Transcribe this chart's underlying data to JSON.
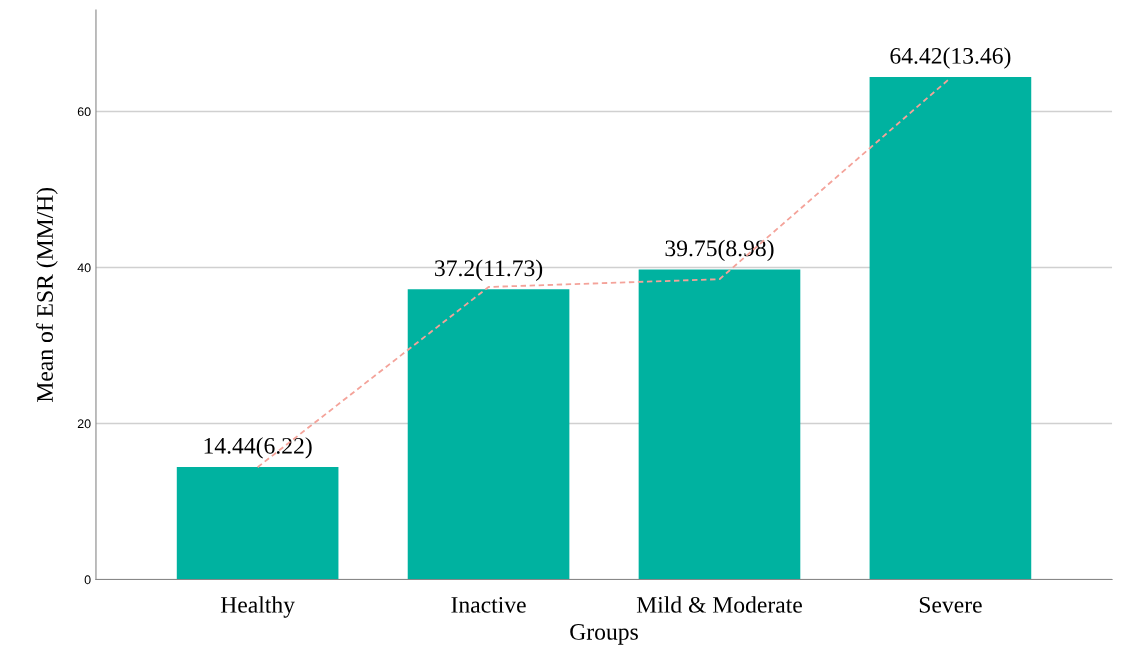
{
  "chart_data": {
    "type": "bar",
    "xlabel": "Groups",
    "ylabel": "Mean of ESR (MM/H)",
    "categories": [
      "Healthy",
      "Inactive",
      "Mild & Moderate",
      "Severe"
    ],
    "series": [
      {
        "color": "#00b2a0",
        "values": [
          14.44,
          37.2,
          39.75,
          64.42
        ],
        "value_labels": [
          "14.44(6.22)",
          "37.2(11.73)",
          "39.75(8.98)",
          "64.42(13.46)"
        ]
      },
      {
        "type": "line",
        "color": "#f4a39a",
        "line_style": "dashed",
        "values": [
          14.4,
          37.5,
          38.5,
          64.3
        ]
      }
    ],
    "ylim": [
      0,
      73
    ],
    "yticks": [
      0,
      20,
      40,
      60
    ],
    "grid": "y"
  }
}
